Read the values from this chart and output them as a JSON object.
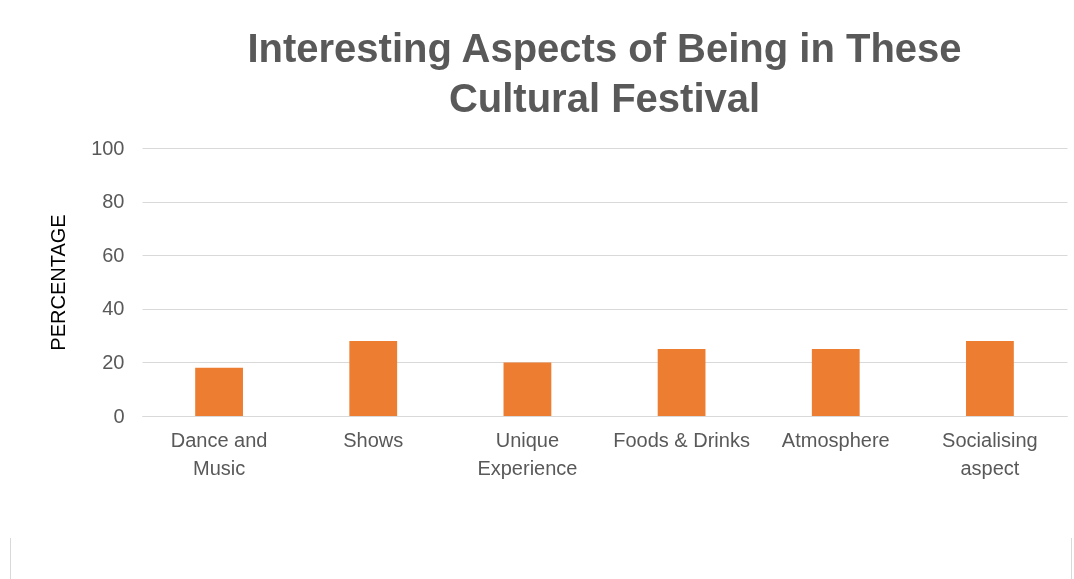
{
  "chart_data": {
    "type": "bar",
    "title": "Interesting Aspects of Being in These Cultural Festival",
    "ylabel": "PERCENTAGE",
    "categories": [
      "Dance and Music",
      "Shows",
      "Unique Experience",
      "Foods & Drinks",
      "Atmosphere",
      "Socialising aspect"
    ],
    "values": [
      18,
      28,
      20,
      25,
      25,
      28
    ],
    "color": "#ed7d31",
    "ylim": [
      0,
      100
    ],
    "yticks": [
      0,
      20,
      40,
      60,
      80,
      100
    ],
    "grid": "y",
    "legend": false
  }
}
